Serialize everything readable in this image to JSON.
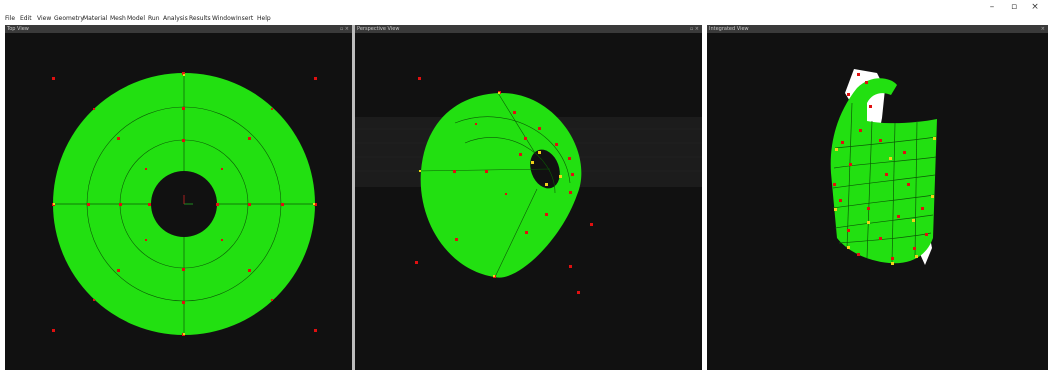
{
  "window": {
    "minimize_icon": "minimize-icon",
    "maximize_icon": "maximize-icon",
    "close_icon": "close-icon",
    "minimize_glyph": "–",
    "maximize_glyph": "▫",
    "close_glyph": "×"
  },
  "menu": [
    "File",
    "Edit",
    "View",
    "Geometry",
    "Material",
    "Mesh",
    "Model",
    "Run",
    "Analysis",
    "Results",
    "Window",
    "Insert",
    "Help"
  ],
  "panels": {
    "top": {
      "title": "Top View",
      "buttons": "▫ ×"
    },
    "perspective": {
      "title": "Perspective View",
      "buttons": "▫ ×"
    },
    "integrated": {
      "title": "Integrated View",
      "buttons": "×"
    }
  },
  "colors": {
    "background": "#111111",
    "mesh_fill": "#22e011",
    "mesh_lines": "#0b5a06",
    "node_red": "#e01010",
    "node_yellow": "#f2d21a",
    "title_bar": "#3a3a3a"
  }
}
